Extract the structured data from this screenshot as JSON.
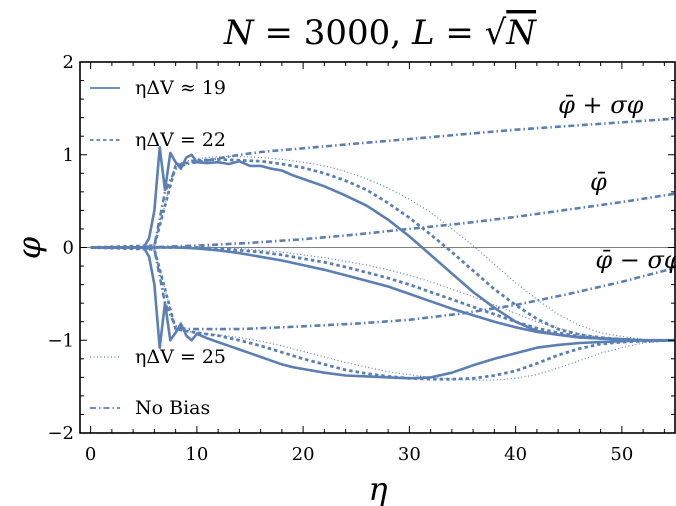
{
  "chart_data": {
    "type": "line",
    "title": "N = 3000, L = √N",
    "xlabel": "η",
    "ylabel": "φ",
    "xlim": [
      -1,
      55
    ],
    "ylim": [
      -2,
      2
    ],
    "x_ticks": [
      0,
      10,
      20,
      30,
      40,
      50
    ],
    "y_ticks": [
      -2,
      -1,
      0,
      1,
      2
    ],
    "x_tick_labels": [
      "0",
      "10",
      "20",
      "30",
      "40",
      "50"
    ],
    "y_tick_labels": [
      "−2",
      "−1",
      "0",
      "1",
      "2"
    ],
    "grid": false,
    "line_color": "#5b7fb5",
    "legend": [
      {
        "label": "ηΔV ≈ 19",
        "style": "solid"
      },
      {
        "label": "ηΔV = 22",
        "style": "dashed"
      },
      {
        "label": "ηΔV = 25",
        "style": "dotted"
      },
      {
        "label": "No Bias",
        "style": "dashdot"
      }
    ],
    "annotations": [
      {
        "text": "φ̄ + σφ",
        "x": 44,
        "y": 1.45
      },
      {
        "text": "φ̄",
        "x": 47,
        "y": 0.62
      },
      {
        "text": "φ̄ − σφ",
        "x": 47.5,
        "y": -0.22
      }
    ],
    "series": [
      {
        "style": "solid",
        "role": "upper",
        "x": [
          0,
          5,
          5.5,
          6,
          6.5,
          7,
          7.5,
          8,
          8.5,
          9,
          9.5,
          10,
          11,
          12,
          13,
          14,
          15,
          16,
          17,
          18,
          19,
          20,
          22,
          24,
          26,
          28,
          30,
          32,
          34,
          36,
          38,
          40,
          42,
          44,
          46,
          48,
          50,
          52,
          55
        ],
        "y": [
          0,
          0,
          0.1,
          0.4,
          1.08,
          0.62,
          1.02,
          0.92,
          0.85,
          0.97,
          1.0,
          0.92,
          0.91,
          0.92,
          0.9,
          0.93,
          0.88,
          0.88,
          0.85,
          0.83,
          0.78,
          0.74,
          0.66,
          0.56,
          0.45,
          0.3,
          0.12,
          -0.08,
          -0.28,
          -0.48,
          -0.65,
          -0.8,
          -0.9,
          -0.94,
          -0.97,
          -0.98,
          -0.99,
          -1.0,
          -1.0
        ]
      },
      {
        "style": "solid",
        "role": "mean",
        "x": [
          0,
          5,
          6,
          8,
          10,
          12,
          14,
          16,
          18,
          20,
          22,
          24,
          26,
          28,
          30,
          32,
          34,
          36,
          38,
          40,
          42,
          44,
          46,
          48,
          50,
          52,
          55
        ],
        "y": [
          0,
          0,
          0,
          0,
          -0.01,
          -0.03,
          -0.06,
          -0.1,
          -0.14,
          -0.19,
          -0.24,
          -0.3,
          -0.36,
          -0.42,
          -0.5,
          -0.58,
          -0.66,
          -0.73,
          -0.8,
          -0.86,
          -0.91,
          -0.94,
          -0.97,
          -0.98,
          -0.99,
          -1.0,
          -1.0
        ]
      },
      {
        "style": "solid",
        "role": "lower",
        "x": [
          0,
          5,
          5.5,
          6,
          6.5,
          7,
          7.5,
          8,
          8.5,
          9,
          9.5,
          10,
          11,
          12,
          13,
          14,
          15,
          16,
          17,
          18,
          19,
          20,
          22,
          24,
          26,
          28,
          30,
          32,
          34,
          36,
          38,
          40,
          42,
          44,
          46,
          48,
          50,
          52,
          55
        ],
        "y": [
          0,
          0,
          -0.1,
          -0.4,
          -1.08,
          -0.6,
          -1.0,
          -0.92,
          -0.82,
          -0.95,
          -1.0,
          -0.93,
          -0.98,
          -1.02,
          -1.06,
          -1.1,
          -1.14,
          -1.18,
          -1.22,
          -1.26,
          -1.29,
          -1.31,
          -1.35,
          -1.38,
          -1.39,
          -1.4,
          -1.41,
          -1.4,
          -1.35,
          -1.27,
          -1.2,
          -1.14,
          -1.08,
          -1.05,
          -1.03,
          -1.02,
          -1.01,
          -1.0,
          -1.0
        ]
      },
      {
        "style": "dashed",
        "role": "upper",
        "x": [
          0,
          6,
          8,
          10,
          12,
          14,
          16,
          18,
          20,
          22,
          24,
          26,
          28,
          30,
          32,
          34,
          36,
          38,
          40,
          42,
          44,
          46,
          48,
          50,
          52,
          55
        ],
        "y": [
          0,
          0.02,
          0.88,
          0.94,
          0.95,
          0.94,
          0.93,
          0.9,
          0.86,
          0.8,
          0.72,
          0.62,
          0.48,
          0.32,
          0.14,
          -0.05,
          -0.25,
          -0.45,
          -0.62,
          -0.77,
          -0.88,
          -0.94,
          -0.97,
          -0.99,
          -1.0,
          -1.0
        ]
      },
      {
        "style": "dashed",
        "role": "mean",
        "x": [
          0,
          6,
          8,
          10,
          12,
          14,
          16,
          18,
          20,
          22,
          24,
          26,
          28,
          30,
          32,
          34,
          36,
          38,
          40,
          42,
          44,
          46,
          48,
          50,
          52,
          55
        ],
        "y": [
          0,
          0,
          0,
          0,
          -0.01,
          -0.03,
          -0.05,
          -0.08,
          -0.12,
          -0.16,
          -0.21,
          -0.27,
          -0.33,
          -0.4,
          -0.48,
          -0.56,
          -0.64,
          -0.72,
          -0.8,
          -0.87,
          -0.92,
          -0.96,
          -0.98,
          -0.99,
          -1.0,
          -1.0
        ]
      },
      {
        "style": "dashed",
        "role": "lower",
        "x": [
          0,
          6,
          8,
          10,
          12,
          14,
          16,
          18,
          20,
          22,
          24,
          26,
          28,
          30,
          32,
          34,
          36,
          38,
          40,
          42,
          44,
          46,
          48,
          50,
          52,
          55
        ],
        "y": [
          0,
          -0.02,
          -0.88,
          -0.92,
          -0.95,
          -1.0,
          -1.06,
          -1.13,
          -1.2,
          -1.26,
          -1.32,
          -1.36,
          -1.39,
          -1.41,
          -1.42,
          -1.42,
          -1.41,
          -1.38,
          -1.33,
          -1.25,
          -1.16,
          -1.09,
          -1.04,
          -1.02,
          -1.01,
          -1.0
        ]
      },
      {
        "style": "dotted",
        "role": "upper",
        "x": [
          0,
          6,
          8,
          10,
          12,
          14,
          16,
          18,
          20,
          22,
          24,
          26,
          28,
          30,
          32,
          34,
          36,
          38,
          40,
          42,
          44,
          46,
          48,
          50,
          52,
          55
        ],
        "y": [
          0,
          0.02,
          0.9,
          0.96,
          0.98,
          0.98,
          0.97,
          0.95,
          0.92,
          0.88,
          0.82,
          0.74,
          0.64,
          0.52,
          0.38,
          0.2,
          0.02,
          -0.18,
          -0.38,
          -0.56,
          -0.72,
          -0.84,
          -0.92,
          -0.96,
          -0.99,
          -1.0
        ]
      },
      {
        "style": "dotted",
        "role": "mean",
        "x": [
          0,
          6,
          8,
          10,
          12,
          14,
          16,
          18,
          20,
          22,
          24,
          26,
          28,
          30,
          32,
          34,
          36,
          38,
          40,
          42,
          44,
          46,
          48,
          50,
          52,
          55
        ],
        "y": [
          0,
          0,
          0,
          0,
          0,
          -0.01,
          -0.03,
          -0.05,
          -0.08,
          -0.11,
          -0.15,
          -0.19,
          -0.24,
          -0.3,
          -0.37,
          -0.45,
          -0.53,
          -0.62,
          -0.71,
          -0.8,
          -0.87,
          -0.93,
          -0.97,
          -0.99,
          -1.0,
          -1.0
        ]
      },
      {
        "style": "dotted",
        "role": "lower",
        "x": [
          0,
          6,
          8,
          10,
          12,
          14,
          16,
          18,
          20,
          22,
          24,
          26,
          28,
          30,
          32,
          34,
          36,
          38,
          40,
          42,
          44,
          46,
          48,
          50,
          52,
          55
        ],
        "y": [
          0,
          -0.02,
          -0.88,
          -0.92,
          -0.94,
          -0.97,
          -1.01,
          -1.06,
          -1.12,
          -1.18,
          -1.24,
          -1.29,
          -1.34,
          -1.37,
          -1.4,
          -1.42,
          -1.43,
          -1.43,
          -1.41,
          -1.37,
          -1.3,
          -1.22,
          -1.14,
          -1.08,
          -1.03,
          -1.0
        ]
      },
      {
        "style": "dashdot",
        "role": "upper",
        "x": [
          0,
          5,
          6,
          7,
          8,
          9,
          10,
          12,
          14,
          16,
          18,
          20,
          25,
          30,
          35,
          40,
          45,
          50,
          55
        ],
        "y": [
          0,
          0,
          0.02,
          0.6,
          0.85,
          0.9,
          0.92,
          0.96,
          1.0,
          1.03,
          1.05,
          1.07,
          1.12,
          1.17,
          1.22,
          1.27,
          1.31,
          1.35,
          1.39
        ]
      },
      {
        "style": "dashdot",
        "role": "mean",
        "x": [
          0,
          5,
          10,
          15,
          20,
          25,
          30,
          35,
          40,
          45,
          50,
          55
        ],
        "y": [
          0,
          0,
          0.02,
          0.05,
          0.09,
          0.14,
          0.2,
          0.26,
          0.33,
          0.41,
          0.49,
          0.58
        ]
      },
      {
        "style": "dashdot",
        "role": "lower",
        "x": [
          0,
          5,
          6,
          7,
          8,
          9,
          10,
          12,
          14,
          16,
          18,
          20,
          25,
          30,
          35,
          40,
          45,
          50,
          55
        ],
        "y": [
          0,
          0,
          -0.02,
          -0.6,
          -0.85,
          -0.88,
          -0.88,
          -0.88,
          -0.88,
          -0.87,
          -0.86,
          -0.85,
          -0.82,
          -0.78,
          -0.71,
          -0.62,
          -0.5,
          -0.37,
          -0.22
        ]
      }
    ]
  }
}
